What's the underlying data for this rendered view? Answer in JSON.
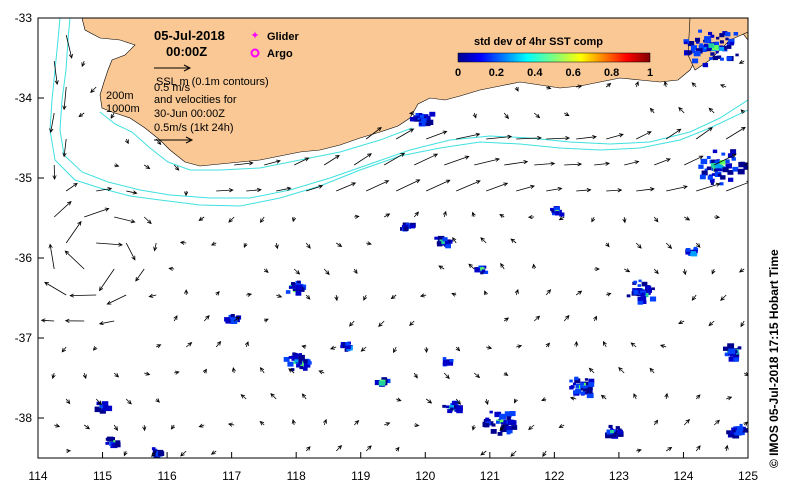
{
  "map": {
    "date": "05-Jul-2018",
    "time": "00:00Z",
    "lon_ticks": [
      "114",
      "115",
      "116",
      "117",
      "118",
      "119",
      "120",
      "121",
      "122",
      "123",
      "124",
      "125"
    ],
    "lat_ticks": [
      "-33",
      "-34",
      "-35",
      "-36",
      "-37",
      "-38"
    ],
    "legend": {
      "glider": "Glider",
      "argo": "Argo",
      "glider_color": "#ff00ff",
      "argo_color": "#ff00ff"
    },
    "sla_note": {
      "line1": "SSL m (0.1m contours)",
      "line2": "0.5 m/s",
      "line3": "and velocities for",
      "line4": "30-Jun 00:00Z",
      "line5": "0.5m/s (1kt 24h)"
    },
    "isobaths": {
      "shallow": "200m",
      "deep": "1000m",
      "color": "#40e0e0"
    },
    "colorbar": {
      "title": "std dev of 4hr SST comp",
      "ticks": [
        "0",
        "0.2",
        "0.4",
        "0.6",
        "0.8",
        "1"
      ]
    },
    "credit": "© IMOS 05-Jul-2018 17:15 Hobart Time",
    "land_color": "#f9c895"
  }
}
